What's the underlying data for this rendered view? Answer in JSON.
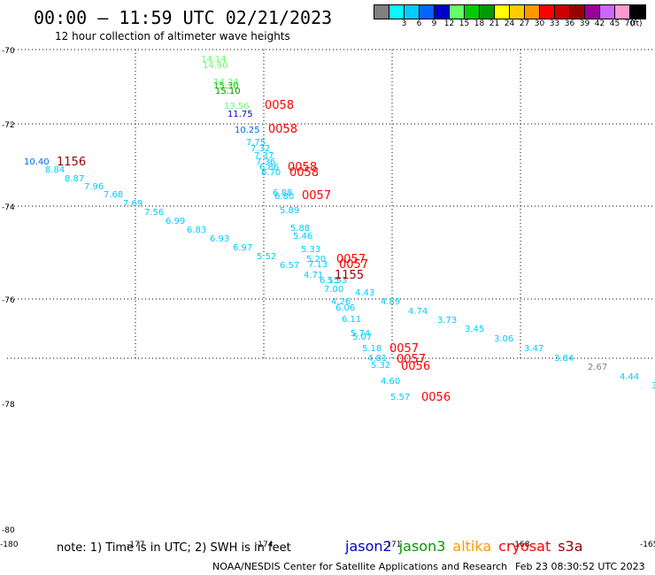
{
  "header": {
    "title": "00:00 — 11:59 UTC 02/21/2023",
    "subtitle": "12 hour collection of altimeter wave heights"
  },
  "legend": {
    "unit": "(ft)",
    "bins": [
      {
        "label": "",
        "color": "#808080"
      },
      {
        "label": "3",
        "color": "#00ffff"
      },
      {
        "label": "6",
        "color": "#00ccff"
      },
      {
        "label": "9",
        "color": "#0066ff"
      },
      {
        "label": "12",
        "color": "#0000cc"
      },
      {
        "label": "15",
        "color": "#66ff66"
      },
      {
        "label": "18",
        "color": "#00cc00"
      },
      {
        "label": "21",
        "color": "#009900"
      },
      {
        "label": "24",
        "color": "#ffff00"
      },
      {
        "label": "27",
        "color": "#ffcc00"
      },
      {
        "label": "30",
        "color": "#ff9900"
      },
      {
        "label": "33",
        "color": "#ff0000"
      },
      {
        "label": "36",
        "color": "#cc0000"
      },
      {
        "label": "39",
        "color": "#990000"
      },
      {
        "label": "42",
        "color": "#990099"
      },
      {
        "label": "45",
        "color": "#cc66ff"
      },
      {
        "label": "70",
        "color": "#ff99cc"
      },
      {
        "label": "",
        "color": "#000000"
      }
    ]
  },
  "map": {
    "lon_ticks": [
      "-180",
      "-177",
      "-174",
      "-171",
      "-168",
      "-165"
    ],
    "lat_ticks": [
      "-70",
      "-72",
      "-74",
      "-76",
      "-78",
      "-80"
    ],
    "lon_range": [
      -180,
      -165
    ],
    "lat_range": [
      -80,
      -70
    ]
  },
  "observations": [
    {
      "text": "14.14",
      "color": "#66ff66"
    },
    {
      "text": "14.90",
      "color": "#66ff66"
    },
    {
      "text": "14.34",
      "color": "#66ff66"
    },
    {
      "text": "15.30",
      "color": "#00cc00"
    },
    {
      "text": "15.10",
      "color": "#009900"
    },
    {
      "text": "13.56",
      "color": "#66ff66"
    },
    {
      "text": "11.75",
      "color": "#0000cc"
    },
    {
      "text": "10.25",
      "color": "#0066ff"
    },
    {
      "text": "10.40",
      "color": "#0066ff"
    },
    {
      "text": "8.84",
      "color": "#00ccff"
    },
    {
      "text": "8.87",
      "color": "#00ccff"
    },
    {
      "text": "7.96",
      "color": "#00ccff"
    },
    {
      "text": "7.68",
      "color": "#00ccff"
    },
    {
      "text": "7.69",
      "color": "#00ccff"
    },
    {
      "text": "7.56",
      "color": "#00ccff"
    },
    {
      "text": "6.99",
      "color": "#00ccff"
    },
    {
      "text": "6.83",
      "color": "#00ccff"
    },
    {
      "text": "6.93",
      "color": "#00ccff"
    },
    {
      "text": "6.97",
      "color": "#00ccff"
    },
    {
      "text": "7.75",
      "color": "#00ccff"
    },
    {
      "text": "7.32",
      "color": "#00ccff"
    },
    {
      "text": "7.37",
      "color": "#00ccff"
    },
    {
      "text": "7.36",
      "color": "#00ccff"
    },
    {
      "text": "6.86",
      "color": "#00ccff"
    },
    {
      "text": "6.70",
      "color": "#00ccff"
    },
    {
      "text": "6.88",
      "color": "#00ccff"
    },
    {
      "text": "6.80",
      "color": "#00ccff"
    },
    {
      "text": "5.89",
      "color": "#00ccff"
    },
    {
      "text": "5.88",
      "color": "#00ccff"
    },
    {
      "text": "5.46",
      "color": "#00ccff"
    },
    {
      "text": "5.33",
      "color": "#00ccff"
    },
    {
      "text": "5.52",
      "color": "#00ccff"
    },
    {
      "text": "6.57",
      "color": "#00ccff"
    },
    {
      "text": "5.20",
      "color": "#00ccff"
    },
    {
      "text": "7.13",
      "color": "#00ccff"
    },
    {
      "text": "4.71",
      "color": "#00ccff"
    },
    {
      "text": "6.15",
      "color": "#00ccff"
    },
    {
      "text": "5.53",
      "color": "#00ccff"
    },
    {
      "text": "7.00",
      "color": "#00ccff"
    },
    {
      "text": "4.43",
      "color": "#00ccff"
    },
    {
      "text": "4.89",
      "color": "#00ccff"
    },
    {
      "text": "4.74",
      "color": "#00ccff"
    },
    {
      "text": "4.26",
      "color": "#00ccff"
    },
    {
      "text": "6.06",
      "color": "#00ccff"
    },
    {
      "text": "6.11",
      "color": "#00ccff"
    },
    {
      "text": "3.73",
      "color": "#00ccff"
    },
    {
      "text": "3.45",
      "color": "#00ccff"
    },
    {
      "text": "5.74",
      "color": "#00ccff"
    },
    {
      "text": "5.07",
      "color": "#00ccff"
    },
    {
      "text": "3.06",
      "color": "#00ccff"
    },
    {
      "text": "3.47",
      "color": "#00ccff"
    },
    {
      "text": "5.18",
      "color": "#00ccff"
    },
    {
      "text": "4.81",
      "color": "#00ccff"
    },
    {
      "text": "5.32",
      "color": "#00ccff"
    },
    {
      "text": "3.84",
      "color": "#00ccff"
    },
    {
      "text": "2.67",
      "color": "#808080"
    },
    {
      "text": "4.60",
      "color": "#00ccff"
    },
    {
      "text": "4.44",
      "color": "#00ccff"
    },
    {
      "text": "5.57",
      "color": "#00ccff"
    },
    {
      "text": "3",
      "color": "#00ccff"
    }
  ],
  "time_labels": [
    {
      "text": "0058",
      "color": "#ff0000"
    },
    {
      "text": "0058",
      "color": "#ff0000"
    },
    {
      "text": "1156",
      "color": "#990000"
    },
    {
      "text": "0058",
      "color": "#ff0000"
    },
    {
      "text": "0058",
      "color": "#ff0000"
    },
    {
      "text": "0057",
      "color": "#ff0000"
    },
    {
      "text": "0057",
      "color": "#ff0000"
    },
    {
      "text": "0057",
      "color": "#ff0000"
    },
    {
      "text": "1155",
      "color": "#990000"
    },
    {
      "text": "0057",
      "color": "#ff0000"
    },
    {
      "text": "0057",
      "color": "#ff0000"
    },
    {
      "text": "0056",
      "color": "#ff0000"
    },
    {
      "text": "0056",
      "color": "#ff0000"
    }
  ],
  "footer": {
    "note": "note: 1) Time is in UTC; 2) SWH is in feet",
    "missions": [
      {
        "name": "jason2",
        "color": "#0000cc"
      },
      {
        "name": "jason3",
        "color": "#009900"
      },
      {
        "name": "altika",
        "color": "#ff9900"
      },
      {
        "name": "cryosat",
        "color": "#ff0000"
      },
      {
        "name": "s3a",
        "color": "#990000"
      }
    ],
    "credit": "NOAA/NESDIS Center for Satellite Applications and Research",
    "timestamp": "Feb 23 08:30:52 UTC 2023"
  }
}
